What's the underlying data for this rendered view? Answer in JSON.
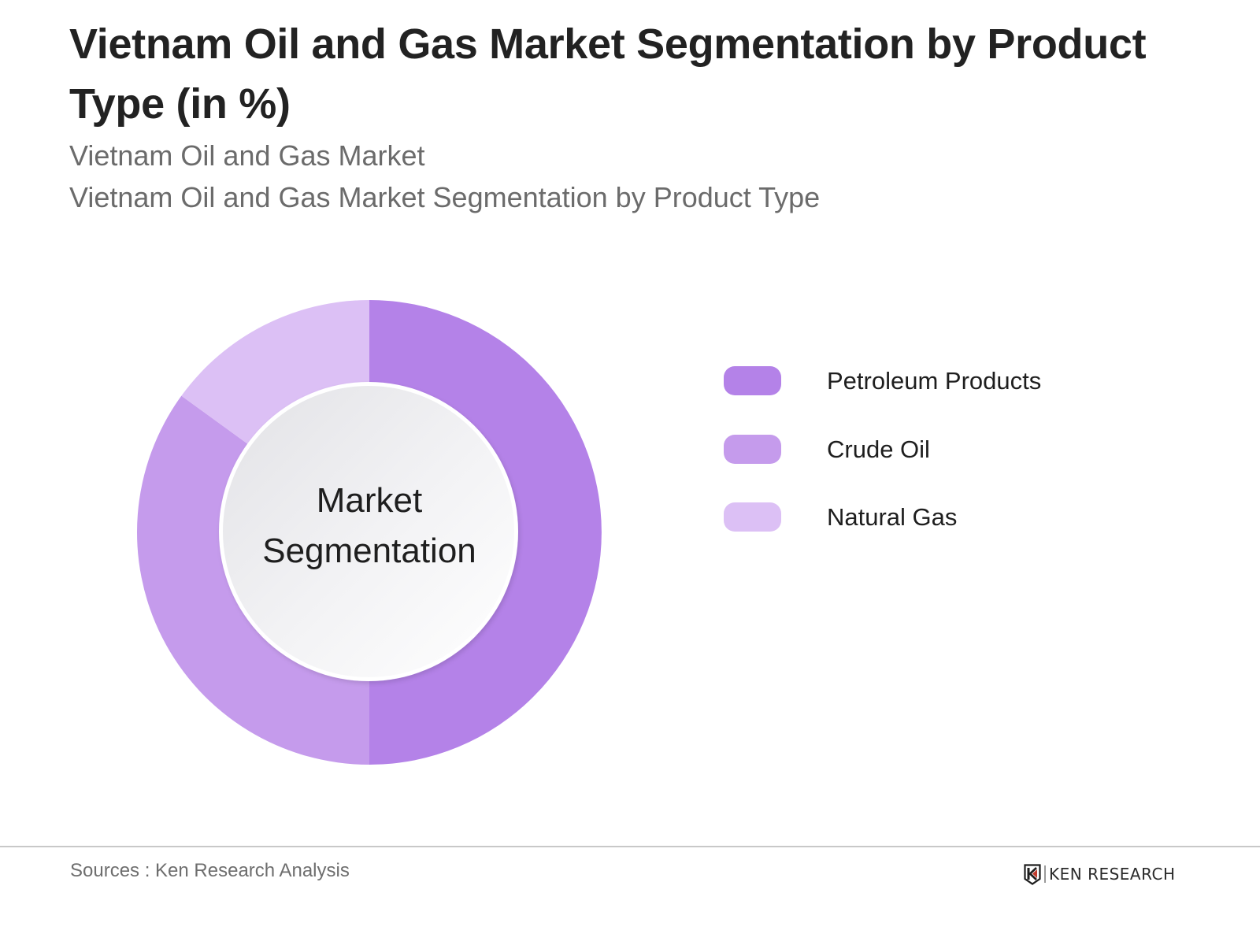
{
  "header": {
    "title": "Vietnam Oil and Gas Market Segmentation by Product Type (in %)",
    "subtitle_1": "Vietnam Oil and Gas Market",
    "subtitle_2": "Vietnam Oil and Gas Market Segmentation by Product Type"
  },
  "center_label": {
    "line1": "Market",
    "line2": "Segmentation"
  },
  "legend": {
    "items": [
      {
        "label": "Petroleum Products",
        "color": "#b482e8"
      },
      {
        "label": "Crude Oil",
        "color": "#c59bec"
      },
      {
        "label": "Natural Gas",
        "color": "#dcc0f5"
      }
    ]
  },
  "footer": {
    "source": "Sources : Ken Research Analysis",
    "logo_text": "KEN RESEARCH"
  },
  "chart_data": {
    "type": "pie",
    "variant": "donut",
    "title": "Vietnam Oil and Gas Market Segmentation by Product Type (in %)",
    "subtitle": "Vietnam Oil and Gas Market Segmentation by Product Type",
    "center_text": "Market Segmentation",
    "categories": [
      "Petroleum Products",
      "Crude Oil",
      "Natural Gas"
    ],
    "values": [
      50,
      35,
      15
    ],
    "colors": [
      "#b482e8",
      "#c59bec",
      "#dcc0f5"
    ],
    "unit": "%",
    "data_labels_shown": false,
    "legend_position": "right",
    "start_angle": "12 o'clock",
    "direction": "clockwise"
  }
}
